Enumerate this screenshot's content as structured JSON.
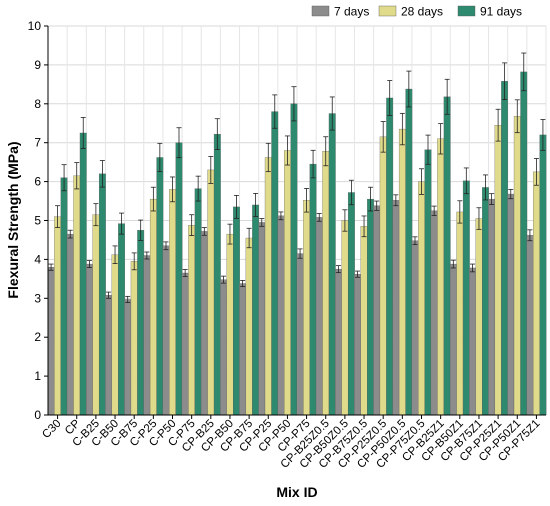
{
  "chart_data": {
    "type": "bar",
    "ylabel": "Flexural Strength (MPa)",
    "xlabel": "Mix ID",
    "ylim": [
      0,
      10
    ],
    "yticks": [
      0,
      1,
      2,
      3,
      4,
      5,
      6,
      7,
      8,
      9,
      10
    ],
    "grid": true,
    "legend_position": "top-right",
    "categories": [
      "C30",
      "CP",
      "C-B25",
      "C-B50",
      "C-B75",
      "C-P25",
      "C-P50",
      "C-P75",
      "CP-B25",
      "CP-B50",
      "CP-B75",
      "CP-P25",
      "CP-P50",
      "CP-P75",
      "CP-B25Z0.5",
      "CP-B50Z0.5",
      "CP-B75Z0.5",
      "CP-P25Z0.5",
      "CP-P50Z0.5",
      "CP-P75Z0.5",
      "CP-B25Z1",
      "CP-B50Z1",
      "CP-B75Z1",
      "CP-P25Z1",
      "CP-P50Z1",
      "CP-P75Z1"
    ],
    "series": [
      {
        "name": "7 days",
        "color": "#8c8c8c",
        "values": [
          3.8,
          4.65,
          3.88,
          3.08,
          2.97,
          4.1,
          4.35,
          3.65,
          4.72,
          3.48,
          3.38,
          4.95,
          5.12,
          4.15,
          5.08,
          3.75,
          3.62,
          5.38,
          5.52,
          4.48,
          5.25,
          3.88,
          3.78,
          5.55,
          5.68,
          4.62
        ],
        "errors": [
          0.08,
          0.1,
          0.09,
          0.08,
          0.08,
          0.09,
          0.1,
          0.09,
          0.1,
          0.09,
          0.08,
          0.1,
          0.1,
          0.12,
          0.1,
          0.09,
          0.08,
          0.12,
          0.14,
          0.1,
          0.12,
          0.1,
          0.1,
          0.14,
          0.12,
          0.14
        ]
      },
      {
        "name": "28 days",
        "color": "#e0db8a",
        "values": [
          5.1,
          6.15,
          5.15,
          4.12,
          3.95,
          5.55,
          5.8,
          4.88,
          6.3,
          4.65,
          4.55,
          6.62,
          6.8,
          5.52,
          6.78,
          5.0,
          4.85,
          7.15,
          7.35,
          6.0,
          7.1,
          5.22,
          5.05,
          7.45,
          7.68,
          6.25
        ]
      },
      {
        "name": "91 days",
        "color": "#2e8a6e",
        "values": [
          6.1,
          7.25,
          6.2,
          4.92,
          4.75,
          6.62,
          7.0,
          5.82,
          7.22,
          5.35,
          5.4,
          7.8,
          8.0,
          6.45,
          7.75,
          5.72,
          5.55,
          8.15,
          8.38,
          6.82,
          8.18,
          6.02,
          5.85,
          8.58,
          8.82,
          7.2
        ]
      }
    ]
  }
}
